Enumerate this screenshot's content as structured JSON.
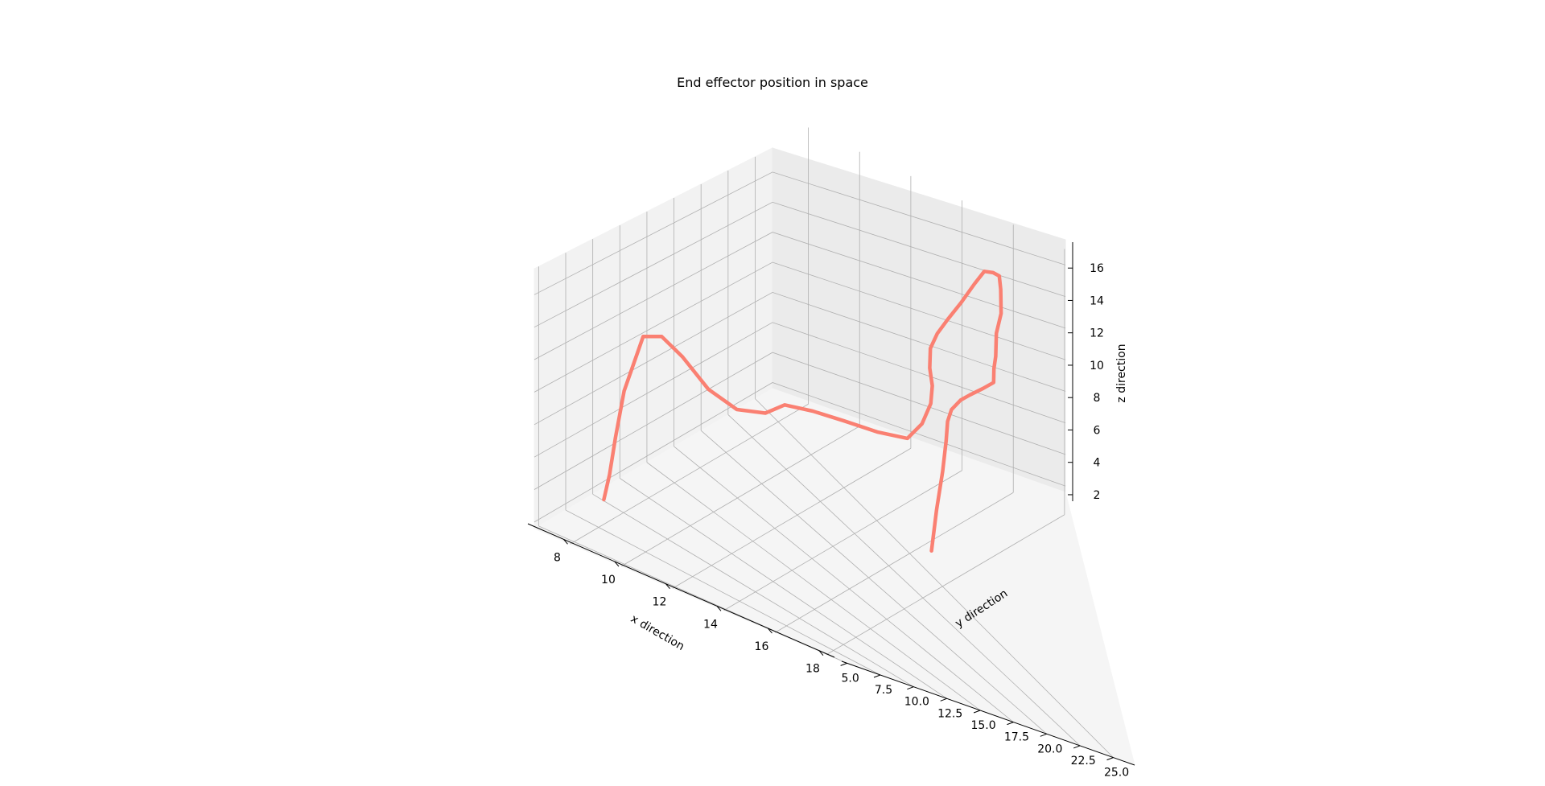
{
  "chart_data": {
    "type": "line3d",
    "title": "End effector position in space",
    "xlabel": "x direction",
    "ylabel": "y direction",
    "zlabel": "z direction",
    "x_ticks": [
      "8",
      "10",
      "12",
      "14",
      "16",
      "18"
    ],
    "y_ticks": [
      "5.0",
      "7.5",
      "10.0",
      "12.5",
      "15.0",
      "17.5",
      "20.0",
      "22.5",
      "25.0"
    ],
    "z_ticks": [
      "2",
      "4",
      "6",
      "8",
      "10",
      "12",
      "14",
      "16"
    ],
    "xlim": [
      6.6,
      18.6
    ],
    "ylim": [
      4.6,
      26.6
    ],
    "zlim": [
      1.6,
      17.6
    ],
    "grid": true,
    "line_color": "#FA8072",
    "series": [
      {
        "x": [
          8.3,
          8.1,
          7.7,
          7.4,
          7.3,
          7.6,
          8.2,
          9.0,
          9.9,
          10.8,
          11.3,
          12.1,
          13.0,
          13.9,
          14.7,
          15.1,
          15.4,
          15.5,
          15.4,
          15.3,
          15.4,
          15.6,
          15.9,
          16.3,
          16.6,
          16.9,
          17.1,
          17.2,
          17.3,
          17.2,
          17.3,
          17.4,
          17.6,
          17.4,
          17.1,
          16.9,
          16.8,
          16.9,
          17.1,
          17.3,
          17.4,
          17.5
        ],
        "y": [
          7.0,
          8.0,
          9.5,
          11.0,
          13.0,
          14.0,
          14.5,
          15.0,
          15.5,
          16.0,
          16.6,
          17.3,
          18.1,
          19.0,
          19.9,
          20.3,
          20.4,
          20.3,
          20.3,
          20.6,
          21.0,
          21.5,
          22.0,
          22.3,
          22.5,
          22.6,
          22.7,
          22.6,
          22.4,
          22.2,
          21.9,
          21.5,
          21.0,
          20.5,
          20.0,
          19.6,
          19.0,
          18.4,
          17.8,
          17.0,
          16.2,
          15.5
        ],
        "z": [
          3.6,
          4.6,
          6.0,
          8.0,
          10.4,
          10.2,
          9.2,
          7.6,
          6.8,
          7.0,
          7.6,
          7.5,
          7.2,
          6.8,
          6.6,
          7.6,
          9.0,
          10.2,
          11.2,
          12.2,
          13.0,
          13.8,
          14.8,
          16.1,
          17.0,
          17.1,
          17.0,
          16.3,
          15.0,
          13.8,
          12.6,
          12.1,
          11.6,
          11.3,
          10.9,
          10.6,
          10.2,
          9.8,
          9.0,
          7.6,
          5.6,
          3.4
        ]
      }
    ]
  }
}
